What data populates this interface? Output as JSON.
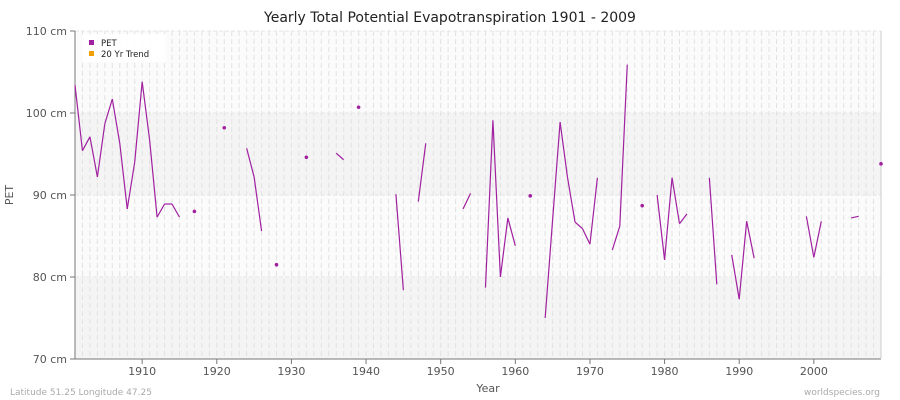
{
  "chart_data": {
    "type": "line",
    "title": "Yearly Total Potential Evapotranspiration 1901 - 2009",
    "xlabel": "Year",
    "ylabel": "PET",
    "xlim": [
      1901,
      2009
    ],
    "ylim": [
      70,
      110
    ],
    "x_ticks": [
      1910,
      1920,
      1930,
      1940,
      1950,
      1960,
      1970,
      1980,
      1990,
      2000
    ],
    "y_ticks": [
      70,
      80,
      90,
      100,
      110
    ],
    "y_tick_labels": [
      "70 cm",
      "80 cm",
      "90 cm",
      "100 cm",
      "110 cm"
    ],
    "grid": true,
    "legend_position": "top-left",
    "legend": [
      {
        "name": "PET",
        "color": "#a020a0"
      },
      {
        "name": "20 Yr Trend",
        "color": "#f0a000"
      }
    ],
    "series": [
      {
        "name": "PET",
        "color": "#a020a0",
        "points": [
          [
            1901,
            103.4
          ],
          [
            1902,
            95.4
          ],
          [
            1903,
            97.1
          ],
          [
            1904,
            92.2
          ],
          [
            1905,
            98.7
          ],
          [
            1906,
            101.7
          ],
          [
            1907,
            96.3
          ],
          [
            1908,
            88.3
          ],
          [
            1909,
            94.0
          ],
          [
            1910,
            103.8
          ],
          [
            1911,
            96.7
          ],
          [
            1912,
            87.3
          ],
          [
            1913,
            88.9
          ],
          [
            1914,
            88.9
          ],
          [
            1915,
            87.3
          ],
          [
            1916,
            null
          ],
          [
            1917,
            88.0
          ],
          [
            1918,
            null
          ],
          [
            1919,
            null
          ],
          [
            1920,
            null
          ],
          [
            1921,
            98.2
          ],
          [
            1922,
            null
          ],
          [
            1923,
            null
          ],
          [
            1924,
            95.7
          ],
          [
            1925,
            92.2
          ],
          [
            1926,
            85.6
          ],
          [
            1927,
            null
          ],
          [
            1928,
            81.5
          ],
          [
            1929,
            null
          ],
          [
            1930,
            null
          ],
          [
            1931,
            null
          ],
          [
            1932,
            94.6
          ],
          [
            1933,
            null
          ],
          [
            1934,
            null
          ],
          [
            1935,
            null
          ],
          [
            1936,
            95.1
          ],
          [
            1937,
            94.3
          ],
          [
            1938,
            null
          ],
          [
            1939,
            100.7
          ],
          [
            1940,
            null
          ],
          [
            1941,
            null
          ],
          [
            1942,
            null
          ],
          [
            1943,
            null
          ],
          [
            1944,
            90.1
          ],
          [
            1945,
            78.4
          ],
          [
            1946,
            null
          ],
          [
            1947,
            89.2
          ],
          [
            1948,
            96.3
          ],
          [
            1949,
            null
          ],
          [
            1950,
            null
          ],
          [
            1951,
            null
          ],
          [
            1952,
            null
          ],
          [
            1953,
            88.3
          ],
          [
            1954,
            90.2
          ],
          [
            1955,
            null
          ],
          [
            1956,
            78.7
          ],
          [
            1957,
            99.1
          ],
          [
            1958,
            80.0
          ],
          [
            1959,
            87.2
          ],
          [
            1960,
            83.8
          ],
          [
            1961,
            null
          ],
          [
            1962,
            89.9
          ],
          [
            1963,
            null
          ],
          [
            1964,
            75.0
          ],
          [
            1965,
            87.0
          ],
          [
            1966,
            98.9
          ],
          [
            1967,
            92.1
          ],
          [
            1968,
            86.7
          ],
          [
            1969,
            85.9
          ],
          [
            1970,
            84.0
          ],
          [
            1971,
            92.1
          ],
          [
            1972,
            null
          ],
          [
            1973,
            83.3
          ],
          [
            1974,
            86.2
          ],
          [
            1975,
            105.9
          ],
          [
            1976,
            null
          ],
          [
            1977,
            88.7
          ],
          [
            1978,
            null
          ],
          [
            1979,
            90.0
          ],
          [
            1980,
            82.1
          ],
          [
            1981,
            92.1
          ],
          [
            1982,
            86.5
          ],
          [
            1983,
            87.7
          ],
          [
            1984,
            null
          ],
          [
            1985,
            null
          ],
          [
            1986,
            92.1
          ],
          [
            1987,
            79.1
          ],
          [
            1988,
            null
          ],
          [
            1989,
            82.7
          ],
          [
            1990,
            77.3
          ],
          [
            1991,
            86.8
          ],
          [
            1992,
            82.3
          ],
          [
            1993,
            null
          ],
          [
            1994,
            null
          ],
          [
            1995,
            null
          ],
          [
            1996,
            null
          ],
          [
            1997,
            null
          ],
          [
            1998,
            null
          ],
          [
            1999,
            87.4
          ],
          [
            2000,
            82.4
          ],
          [
            2001,
            86.8
          ],
          [
            2002,
            null
          ],
          [
            2003,
            null
          ],
          [
            2004,
            null
          ],
          [
            2005,
            87.2
          ],
          [
            2006,
            87.4
          ],
          [
            2007,
            null
          ],
          [
            2008,
            null
          ],
          [
            2009,
            93.8
          ]
        ]
      }
    ]
  },
  "footer": {
    "location": "Latitude 51.25 Longitude 47.25",
    "source": "worldspecies.org"
  }
}
